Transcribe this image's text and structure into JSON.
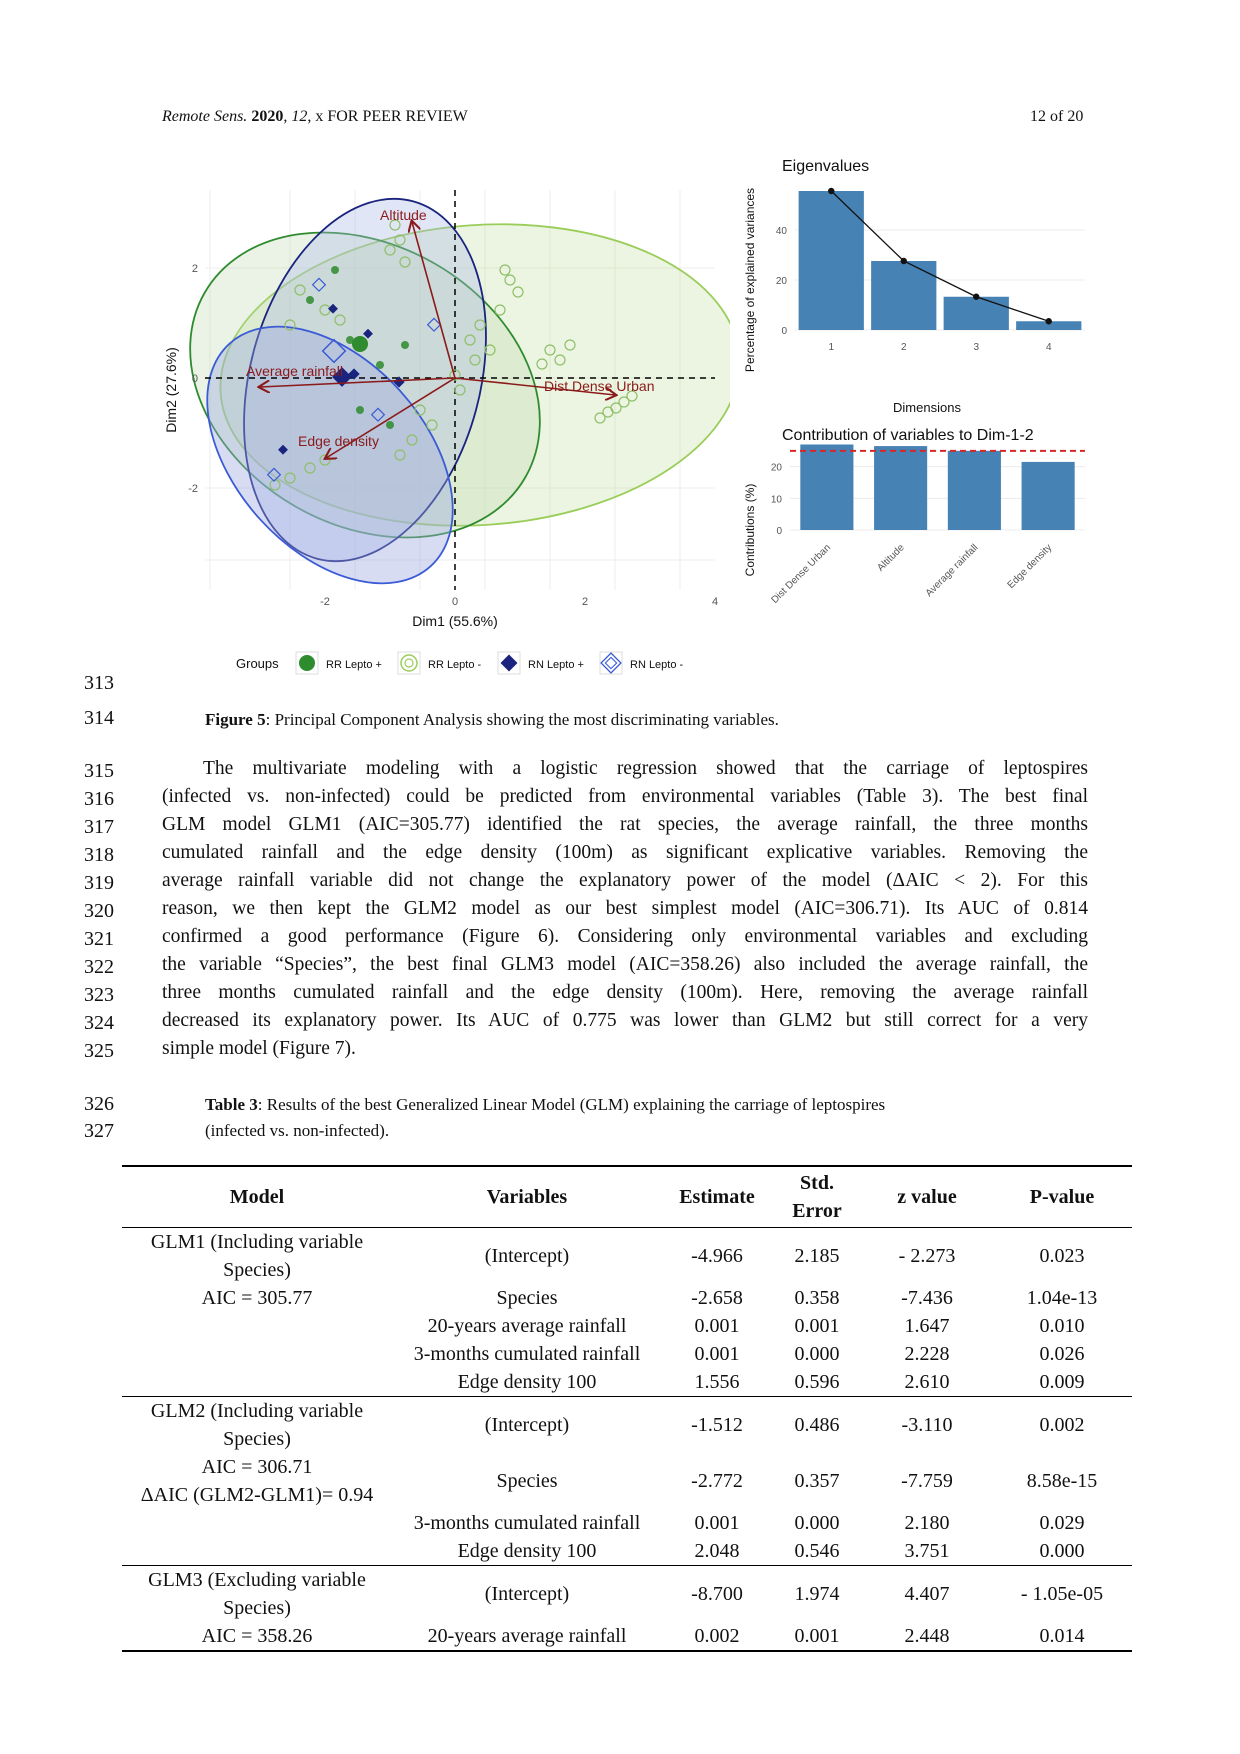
{
  "header": {
    "journal": "Remote Sens.",
    "year": "2020",
    "volume": "12",
    "note": ", x FOR PEER REVIEW",
    "page": "12 of 20"
  },
  "figure": {
    "pca": {
      "xlabel": "Dim1 (55.6%)",
      "ylabel": "Dim2 (27.6%)",
      "xticks": [
        "-2",
        "0",
        "2",
        "4"
      ],
      "yticks": [
        "2",
        "0",
        "-2"
      ],
      "arrows": [
        "Altitude",
        "Average rainfall",
        "Dist Dense Urban",
        "Edge density"
      ],
      "legend_title": "Groups",
      "groups": [
        "RR Lepto +",
        "RR Lepto -",
        "RN Lepto +",
        "RN Lepto -"
      ],
      "colors": {
        "rr_plus": "#2e8b2e",
        "rr_minus": "#9acd5a",
        "rn_plus": "#1a237e",
        "rn_minus": "#3b5bd6",
        "arrow": "#8b1a1a"
      }
    },
    "eigen": {
      "title": "Eigenvalues",
      "xlabel": "Dimensions",
      "ylabel": "Percentage of explained variances",
      "yticks": [
        "0",
        "20",
        "40"
      ],
      "chart_data": {
        "type": "bar",
        "categories": [
          "1",
          "2",
          "3",
          "4"
        ],
        "values": [
          55.6,
          27.6,
          13.3,
          3.5
        ],
        "ylim": [
          0,
          60
        ],
        "color": "#4682b4"
      }
    },
    "contrib": {
      "title": "Contribution of variables to Dim-1-2",
      "ylabel": "Contributions (%)",
      "yticks": [
        "0",
        "10",
        "20"
      ],
      "chart_data": {
        "type": "bar",
        "categories": [
          "Dist Dense Urban",
          "Altitude",
          "Average rainfall",
          "Edge density"
        ],
        "values": [
          27.0,
          26.5,
          25.0,
          21.5
        ],
        "reference_line": 25,
        "ylim": [
          0,
          30
        ],
        "color": "#4682b4"
      }
    }
  },
  "caption5": {
    "label": "Figure 5",
    "text": ": Principal Component Analysis showing the most discriminating variables."
  },
  "line_numbers": [
    "313",
    "314",
    "315",
    "316",
    "317",
    "318",
    "319",
    "320",
    "321",
    "322",
    "323",
    "324",
    "325",
    "326",
    "327"
  ],
  "paragraph": [
    "The multivariate modeling with a logistic regression showed that the carriage of leptospires",
    "(infected vs. non-infected) could be predicted from environmental variables (Table 3). The best final",
    "GLM model GLM1 (AIC=305.77) identified the rat species, the average rainfall, the three months",
    "cumulated rainfall and the edge density (100m) as significant explicative variables. Removing the",
    "average rainfall variable did not change the explanatory power of the model (ΔAIC < 2). For this",
    "reason, we then kept the GLM2 model as our best simplest model (AIC=306.71). Its AUC of 0.814",
    "confirmed a good performance (Figure 6). Considering only environmental variables and excluding",
    "the variable “Species”, the best final GLM3 model (AIC=358.26) also included the average rainfall, the",
    "three months cumulated rainfall and the edge density (100m). Here, removing the average rainfall",
    "decreased its explanatory power. Its AUC of 0.775 was lower than GLM2 but still correct for a very",
    "simple model (Figure 7)."
  ],
  "caption_table": {
    "label": "Table 3",
    "line1": ": Results of the best Generalized Linear Model (GLM) explaining the carriage of leptospires",
    "line2": "(infected vs. non-infected)."
  },
  "table": {
    "headers": [
      "Model",
      "Variables",
      "Estimate",
      "Std.",
      "Error",
      "z value",
      "P-value"
    ],
    "glm1": {
      "model1": "GLM1 (Including variable",
      "model2": "Species)",
      "model3": "AIC = 305.77",
      "rows": [
        [
          "(Intercept)",
          "-4.966",
          "2.185",
          "- 2.273",
          "0.023"
        ],
        [
          "Species",
          "-2.658",
          "0.358",
          "-7.436",
          "1.04e-13"
        ],
        [
          "20-years average rainfall",
          "0.001",
          "0.001",
          "1.647",
          "0.010"
        ],
        [
          "3-months cumulated rainfall",
          "0.001",
          "0.000",
          "2.228",
          "0.026"
        ],
        [
          "Edge density 100",
          "1.556",
          "0.596",
          "2.610",
          "0.009"
        ]
      ]
    },
    "glm2": {
      "model1": "GLM2 (Including variable",
      "model2": "Species)",
      "model3": "AIC = 306.71",
      "model4": "ΔAIC (GLM2-GLM1)= 0.94",
      "rows": [
        [
          "(Intercept)",
          "-1.512",
          "0.486",
          "-3.110",
          "0.002"
        ],
        [
          "Species",
          "-2.772",
          "0.357",
          "-7.759",
          "8.58e-15"
        ],
        [
          "3-months cumulated rainfall",
          "0.001",
          "0.000",
          "2.180",
          "0.029"
        ],
        [
          "Edge density 100",
          "2.048",
          "0.546",
          "3.751",
          "0.000"
        ]
      ]
    },
    "glm3": {
      "model1": "GLM3 (Excluding variable",
      "model2": "Species)",
      "model3": "AIC = 358.26",
      "rows": [
        [
          "(Intercept)",
          "-8.700",
          "1.974",
          "4.407",
          "- 1.05e-05"
        ],
        [
          "20-years average rainfall",
          "0.002",
          "0.001",
          "2.448",
          "0.014"
        ]
      ]
    }
  }
}
